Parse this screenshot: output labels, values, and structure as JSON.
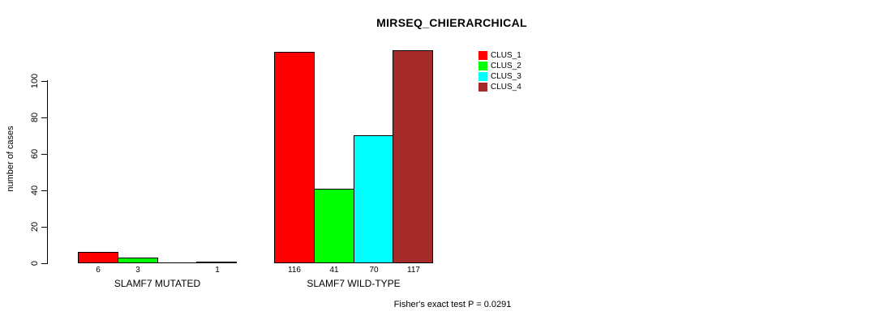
{
  "chart_data": {
    "type": "bar",
    "title": "MIRSEQ_CHIERARCHICAL",
    "ylabel": "number of cases",
    "xlabel": "",
    "categories": [
      "SLAMF7 MUTATED",
      "SLAMF7 WILD-TYPE"
    ],
    "series": [
      {
        "name": "CLUS_1",
        "color": "#FF0000",
        "values": [
          6,
          116
        ]
      },
      {
        "name": "CLUS_2",
        "color": "#00FF00",
        "values": [
          3,
          41
        ]
      },
      {
        "name": "CLUS_3",
        "color": "#00FFFF",
        "values": [
          0,
          70
        ]
      },
      {
        "name": "CLUS_4",
        "color": "#A52A2A",
        "values": [
          1,
          117
        ]
      }
    ],
    "bar_labels": [
      [
        "6",
        "3",
        null,
        "1"
      ],
      [
        "116",
        "41",
        "70",
        "117"
      ]
    ],
    "yticks": [
      0,
      20,
      40,
      60,
      80,
      100
    ],
    "ylim": [
      0,
      118
    ],
    "grid": false,
    "legend": {
      "position": "top-right",
      "entries": [
        {
          "label": "CLUS_1",
          "color": "#FF0000"
        },
        {
          "label": "CLUS_2",
          "color": "#00FF00"
        },
        {
          "label": "CLUS_3",
          "color": "#00FFFF"
        },
        {
          "label": "CLUS_4",
          "color": "#A52A2A"
        }
      ]
    },
    "annotation": "Fisher's exact test P = 0.0291"
  }
}
